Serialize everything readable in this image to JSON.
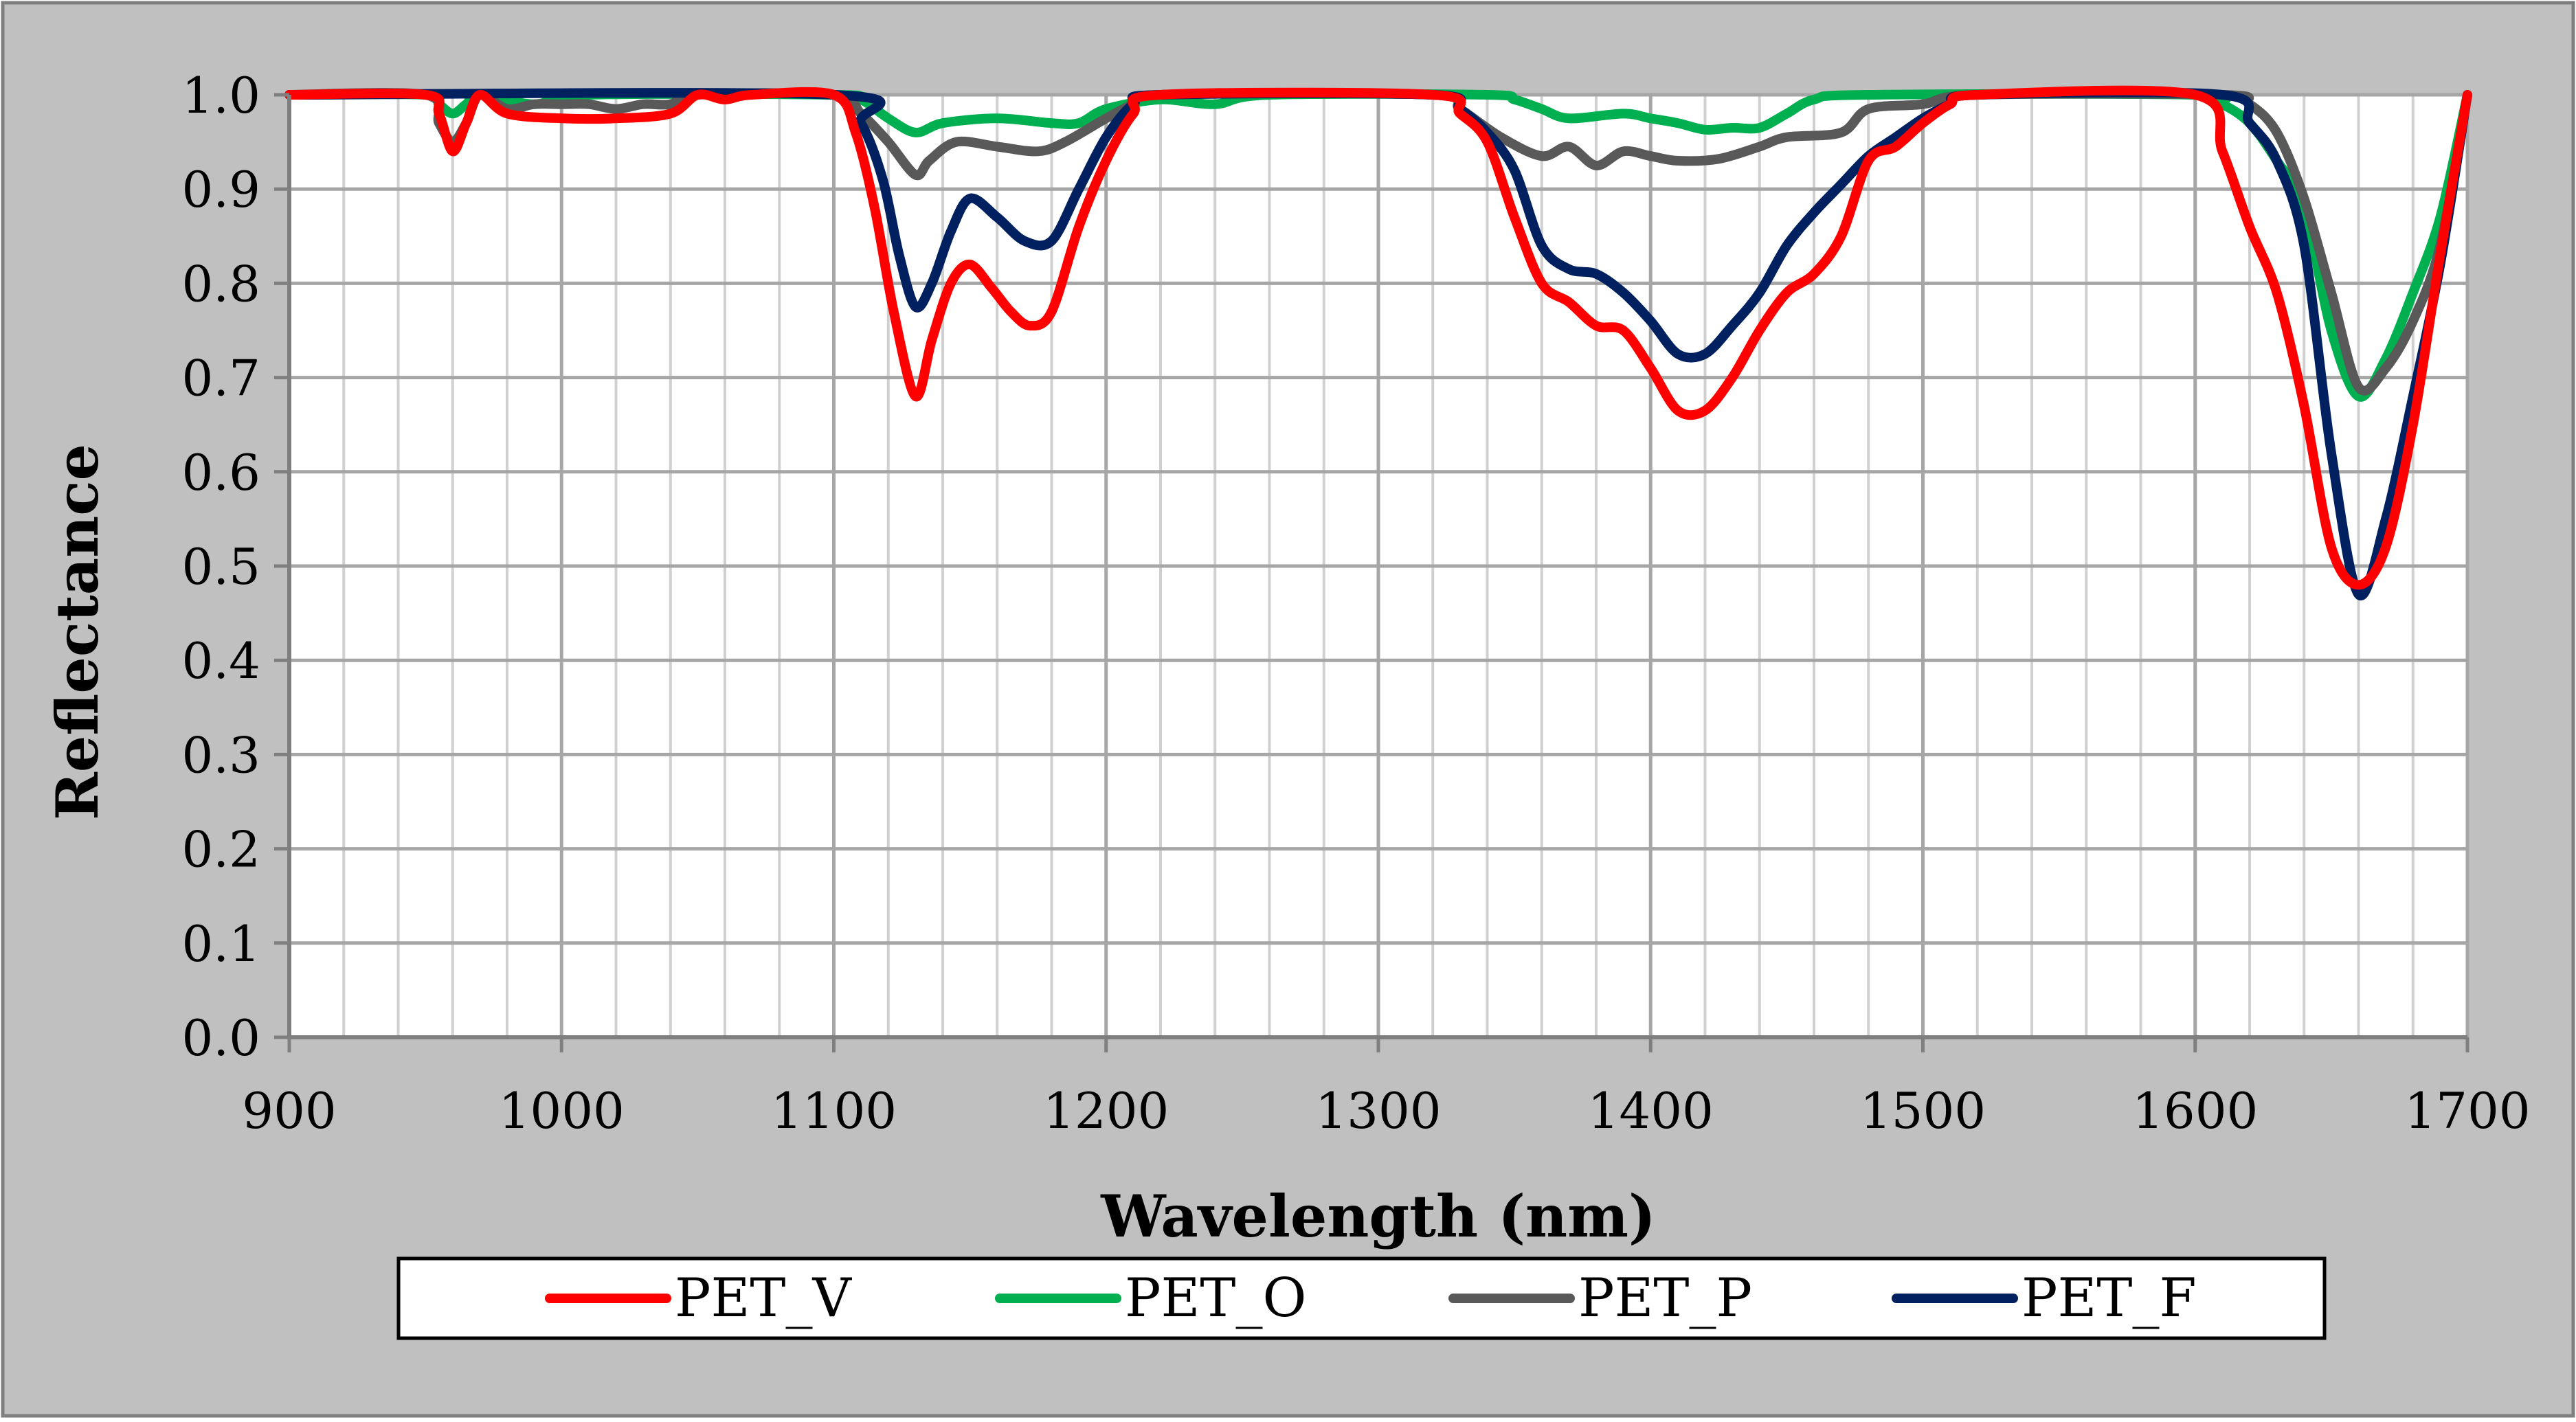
{
  "chart_data": {
    "type": "line",
    "title": "",
    "xlabel": "Wavelength (nm)",
    "ylabel": "Reflectance",
    "xlim": [
      900,
      1700
    ],
    "ylim": [
      0.0,
      1.0
    ],
    "x_major_ticks": [
      900,
      1000,
      1100,
      1200,
      1300,
      1400,
      1500,
      1600,
      1700
    ],
    "x_tick_labels": [
      "900",
      "1000",
      "1100",
      "1200",
      "1300",
      "1400",
      "1500",
      "1600",
      "1700"
    ],
    "x_minor_step": 20,
    "y_ticks": [
      0.0,
      0.1,
      0.2,
      0.3,
      0.4,
      0.5,
      0.6,
      0.7,
      0.8,
      0.9,
      1.0
    ],
    "y_tick_labels": [
      "0.0",
      "0.1",
      "0.2",
      "0.3",
      "0.4",
      "0.5",
      "0.6",
      "0.7",
      "0.8",
      "0.9",
      "1.0"
    ],
    "grid": true,
    "legend_position": "bottom",
    "series": [
      {
        "name": "PET_V",
        "color": "#ff0000",
        "points": [
          [
            900,
            1.0
          ],
          [
            950,
            1.0
          ],
          [
            955,
            0.98
          ],
          [
            960,
            0.94
          ],
          [
            965,
            0.97
          ],
          [
            970,
            1.0
          ],
          [
            980,
            0.98
          ],
          [
            1000,
            0.975
          ],
          [
            1020,
            0.975
          ],
          [
            1040,
            0.98
          ],
          [
            1050,
            1.0
          ],
          [
            1060,
            0.995
          ],
          [
            1070,
            1.0
          ],
          [
            1100,
            1.0
          ],
          [
            1108,
            0.96
          ],
          [
            1115,
            0.88
          ],
          [
            1122,
            0.77
          ],
          [
            1130,
            0.68
          ],
          [
            1136,
            0.74
          ],
          [
            1143,
            0.8
          ],
          [
            1150,
            0.82
          ],
          [
            1158,
            0.795
          ],
          [
            1165,
            0.77
          ],
          [
            1172,
            0.755
          ],
          [
            1180,
            0.77
          ],
          [
            1190,
            0.86
          ],
          [
            1200,
            0.93
          ],
          [
            1210,
            0.98
          ],
          [
            1220,
            1.0
          ],
          [
            1320,
            1.0
          ],
          [
            1330,
            0.98
          ],
          [
            1340,
            0.95
          ],
          [
            1350,
            0.87
          ],
          [
            1360,
            0.8
          ],
          [
            1370,
            0.78
          ],
          [
            1380,
            0.755
          ],
          [
            1390,
            0.75
          ],
          [
            1400,
            0.71
          ],
          [
            1410,
            0.665
          ],
          [
            1420,
            0.665
          ],
          [
            1430,
            0.7
          ],
          [
            1440,
            0.75
          ],
          [
            1450,
            0.79
          ],
          [
            1460,
            0.81
          ],
          [
            1470,
            0.85
          ],
          [
            1480,
            0.93
          ],
          [
            1490,
            0.945
          ],
          [
            1500,
            0.97
          ],
          [
            1510,
            0.99
          ],
          [
            1520,
            1.0
          ],
          [
            1600,
            1.0
          ],
          [
            1610,
            0.94
          ],
          [
            1620,
            0.86
          ],
          [
            1630,
            0.79
          ],
          [
            1640,
            0.67
          ],
          [
            1650,
            0.52
          ],
          [
            1660,
            0.48
          ],
          [
            1670,
            0.52
          ],
          [
            1680,
            0.65
          ],
          [
            1690,
            0.83
          ],
          [
            1700,
            1.0
          ]
        ]
      },
      {
        "name": "PET_O",
        "color": "#00b050",
        "points": [
          [
            900,
            1.0
          ],
          [
            950,
            1.0
          ],
          [
            955,
            0.99
          ],
          [
            960,
            0.98
          ],
          [
            965,
            0.99
          ],
          [
            970,
            1.0
          ],
          [
            990,
            0.99
          ],
          [
            1010,
            1.0
          ],
          [
            1100,
            1.0
          ],
          [
            1110,
            0.995
          ],
          [
            1120,
            0.975
          ],
          [
            1130,
            0.96
          ],
          [
            1140,
            0.97
          ],
          [
            1160,
            0.975
          ],
          [
            1180,
            0.97
          ],
          [
            1190,
            0.97
          ],
          [
            1200,
            0.985
          ],
          [
            1220,
            0.995
          ],
          [
            1240,
            0.99
          ],
          [
            1260,
            1.0
          ],
          [
            1340,
            1.0
          ],
          [
            1350,
            0.995
          ],
          [
            1360,
            0.985
          ],
          [
            1370,
            0.975
          ],
          [
            1390,
            0.98
          ],
          [
            1400,
            0.975
          ],
          [
            1410,
            0.97
          ],
          [
            1420,
            0.963
          ],
          [
            1430,
            0.965
          ],
          [
            1440,
            0.965
          ],
          [
            1450,
            0.98
          ],
          [
            1460,
            0.995
          ],
          [
            1480,
            1.0
          ],
          [
            1600,
            1.0
          ],
          [
            1610,
            0.99
          ],
          [
            1620,
            0.97
          ],
          [
            1630,
            0.93
          ],
          [
            1640,
            0.88
          ],
          [
            1650,
            0.75
          ],
          [
            1660,
            0.68
          ],
          [
            1670,
            0.72
          ],
          [
            1680,
            0.79
          ],
          [
            1690,
            0.87
          ],
          [
            1700,
            1.0
          ]
        ]
      },
      {
        "name": "PET_P",
        "color": "#595959",
        "points": [
          [
            900,
            1.0
          ],
          [
            950,
            1.0
          ],
          [
            955,
            0.97
          ],
          [
            960,
            0.95
          ],
          [
            965,
            0.97
          ],
          [
            970,
            1.0
          ],
          [
            980,
            0.985
          ],
          [
            990,
            0.99
          ],
          [
            1000,
            0.99
          ],
          [
            1010,
            0.99
          ],
          [
            1020,
            0.985
          ],
          [
            1030,
            0.99
          ],
          [
            1040,
            0.99
          ],
          [
            1050,
            1.0
          ],
          [
            1100,
            1.0
          ],
          [
            1110,
            0.98
          ],
          [
            1120,
            0.95
          ],
          [
            1130,
            0.915
          ],
          [
            1135,
            0.93
          ],
          [
            1145,
            0.95
          ],
          [
            1160,
            0.945
          ],
          [
            1175,
            0.94
          ],
          [
            1185,
            0.95
          ],
          [
            1200,
            0.975
          ],
          [
            1210,
            0.99
          ],
          [
            1220,
            1.0
          ],
          [
            1320,
            1.0
          ],
          [
            1330,
            0.985
          ],
          [
            1345,
            0.955
          ],
          [
            1360,
            0.935
          ],
          [
            1370,
            0.945
          ],
          [
            1380,
            0.925
          ],
          [
            1390,
            0.94
          ],
          [
            1400,
            0.935
          ],
          [
            1410,
            0.93
          ],
          [
            1425,
            0.932
          ],
          [
            1440,
            0.945
          ],
          [
            1450,
            0.955
          ],
          [
            1470,
            0.96
          ],
          [
            1480,
            0.985
          ],
          [
            1500,
            0.99
          ],
          [
            1520,
            1.0
          ],
          [
            1610,
            1.0
          ],
          [
            1620,
            0.99
          ],
          [
            1630,
            0.96
          ],
          [
            1640,
            0.89
          ],
          [
            1650,
            0.79
          ],
          [
            1660,
            0.69
          ],
          [
            1670,
            0.71
          ],
          [
            1680,
            0.76
          ],
          [
            1690,
            0.84
          ],
          [
            1700,
            1.0
          ]
        ]
      },
      {
        "name": "PET_F",
        "color": "#002060",
        "points": [
          [
            900,
            1.0
          ],
          [
            1100,
            1.0
          ],
          [
            1110,
            0.97
          ],
          [
            1118,
            0.91
          ],
          [
            1124,
            0.83
          ],
          [
            1130,
            0.775
          ],
          [
            1136,
            0.8
          ],
          [
            1143,
            0.855
          ],
          [
            1150,
            0.89
          ],
          [
            1160,
            0.87
          ],
          [
            1170,
            0.845
          ],
          [
            1180,
            0.845
          ],
          [
            1190,
            0.9
          ],
          [
            1200,
            0.955
          ],
          [
            1210,
            0.99
          ],
          [
            1220,
            1.0
          ],
          [
            1320,
            1.0
          ],
          [
            1330,
            0.985
          ],
          [
            1340,
            0.96
          ],
          [
            1350,
            0.92
          ],
          [
            1360,
            0.84
          ],
          [
            1370,
            0.815
          ],
          [
            1380,
            0.81
          ],
          [
            1390,
            0.79
          ],
          [
            1400,
            0.76
          ],
          [
            1410,
            0.725
          ],
          [
            1420,
            0.725
          ],
          [
            1430,
            0.755
          ],
          [
            1440,
            0.79
          ],
          [
            1450,
            0.84
          ],
          [
            1460,
            0.875
          ],
          [
            1470,
            0.905
          ],
          [
            1480,
            0.935
          ],
          [
            1490,
            0.955
          ],
          [
            1500,
            0.975
          ],
          [
            1510,
            0.99
          ],
          [
            1520,
            1.0
          ],
          [
            1610,
            1.0
          ],
          [
            1620,
            0.97
          ],
          [
            1630,
            0.93
          ],
          [
            1640,
            0.84
          ],
          [
            1650,
            0.62
          ],
          [
            1660,
            0.47
          ],
          [
            1670,
            0.55
          ],
          [
            1680,
            0.68
          ],
          [
            1690,
            0.82
          ],
          [
            1700,
            1.0
          ]
        ]
      }
    ]
  }
}
